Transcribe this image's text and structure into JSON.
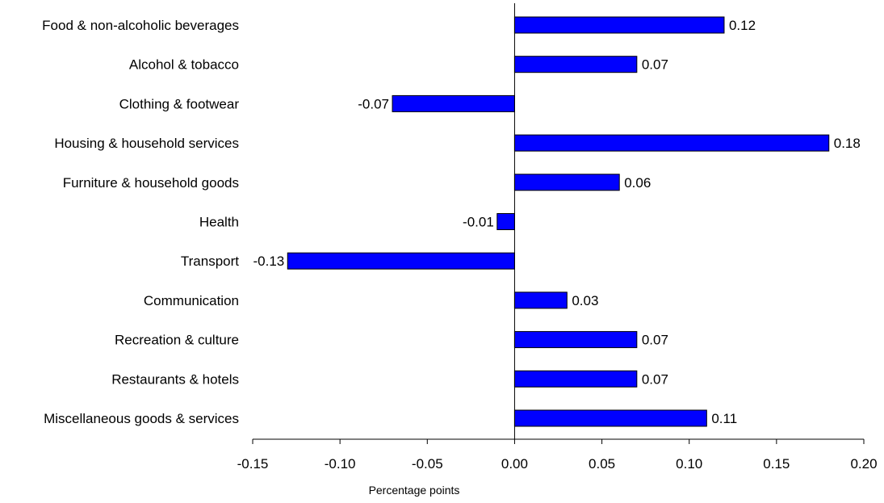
{
  "chart_data": {
    "type": "bar",
    "orientation": "horizontal",
    "categories": [
      "Food & non-alcoholic beverages",
      "Alcohol & tobacco",
      "Clothing & footwear",
      "Housing & household services",
      "Furniture & household goods",
      "Health",
      "Transport",
      "Communication",
      "Recreation & culture",
      "Restaurants & hotels",
      "Miscellaneous goods & services"
    ],
    "values": [
      0.12,
      0.07,
      -0.07,
      0.18,
      0.06,
      -0.01,
      -0.13,
      0.03,
      0.07,
      0.07,
      0.11
    ],
    "value_labels": [
      "0.12",
      "0.07",
      "-0.07",
      "0.18",
      "0.06",
      "-0.01",
      "-0.13",
      "0.03",
      "0.07",
      "0.07",
      "0.11"
    ],
    "xlabel": "Percentage points",
    "ylabel": "",
    "xlim": [
      -0.15,
      0.2
    ],
    "xticks": [
      -0.15,
      -0.1,
      -0.05,
      0.0,
      0.05,
      0.1,
      0.15,
      0.2
    ],
    "xtick_labels": [
      "-0.15",
      "-0.10",
      "-0.05",
      "0.00",
      "0.05",
      "0.10",
      "0.15",
      "0.20"
    ],
    "grid": false,
    "legend": "none",
    "bar_color": "#0000FF",
    "bar_edge_color": "#000000"
  }
}
